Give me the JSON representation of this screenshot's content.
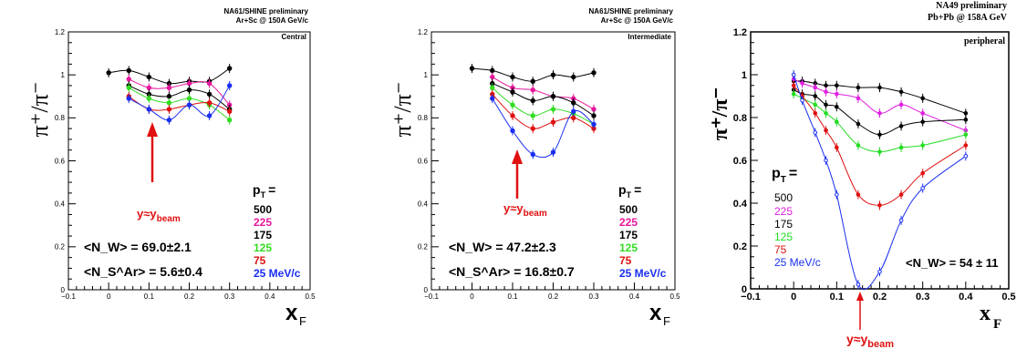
{
  "panels": [
    {
      "header_lines": [
        "NA61/SHINE preliminary",
        "Ar+Sc @ 150A GeV/c"
      ],
      "corner_label": "Central",
      "ylabel": "π⁺/π⁻",
      "xlabel_main": "x",
      "xlabel_sub": "F",
      "pt_label_main": "p",
      "pt_label_sub": "T",
      "pt_label_eq": "=",
      "legend": [
        "500",
        "225",
        "175",
        "125",
        "75",
        "25 MeV/c"
      ],
      "nw_text": "<N_W> = 69.0±2.1",
      "ns_text": "<N_S^Ar> = 5.6±0.4",
      "arrow_label_main": "y≈y",
      "arrow_label_sub": "beam"
    },
    {
      "header_lines": [
        "NA61/SHINE preliminary",
        "Ar+Sc @ 150A GeV/c"
      ],
      "corner_label": "Intermediate",
      "ylabel": "π⁺/π⁻",
      "xlabel_main": "x",
      "xlabel_sub": "F",
      "pt_label_main": "p",
      "pt_label_sub": "T",
      "pt_label_eq": "=",
      "legend": [
        "500",
        "225",
        "175",
        "125",
        "75",
        "25 MeV/c"
      ],
      "nw_text": "<N_W> = 47.2±2.3",
      "ns_text": "<N_S^Ar> = 16.8±0.7",
      "arrow_label_main": "y≈y",
      "arrow_label_sub": "beam"
    },
    {
      "header_lines": [
        "NA49 preliminary",
        "Pb+Pb @ 158A GeV"
      ],
      "corner_label": "peripheral",
      "ylabel": "π⁺/π⁻",
      "xlabel_main": "x",
      "xlabel_sub": "F",
      "pt_label_main": "p",
      "pt_label_sub": "T",
      "pt_label_eq": "=",
      "legend": [
        "500",
        "225",
        "175",
        "125",
        "75",
        "25  MeV/c"
      ],
      "nw_text": "<N_W> = 54 ± 11",
      "ns_text": "",
      "arrow_label_main": "y≈y",
      "arrow_label_sub": "beam"
    }
  ],
  "chart_data": [
    {
      "type": "line",
      "xlim": [
        -0.1,
        0.5
      ],
      "ylim": [
        0,
        1.2
      ],
      "xticks": [
        "−0.1",
        "0",
        "0.1",
        "0.2",
        "0.3",
        "0.4",
        "0.5"
      ],
      "yticks": [
        "0",
        "0.2",
        "0.4",
        "0.6",
        "0.8",
        "1",
        "1.2"
      ],
      "colors": [
        "#000000",
        "#e6189d",
        "#000000",
        "#33dd22",
        "#e01010",
        "#1a2ff0"
      ],
      "series": [
        {
          "name": "500",
          "x": [
            0,
            0.05,
            0.1,
            0.15,
            0.2,
            0.25,
            0.3
          ],
          "y": [
            1.01,
            1.02,
            0.99,
            0.96,
            0.97,
            0.97,
            1.03
          ]
        },
        {
          "name": "225",
          "x": [
            0.05,
            0.1,
            0.15,
            0.2,
            0.25,
            0.3
          ],
          "y": [
            0.98,
            0.94,
            0.94,
            0.96,
            0.96,
            0.86
          ]
        },
        {
          "name": "175",
          "x": [
            0.05,
            0.1,
            0.15,
            0.2,
            0.25,
            0.3
          ],
          "y": [
            0.95,
            0.91,
            0.9,
            0.93,
            0.91,
            0.84
          ]
        },
        {
          "name": "125",
          "x": [
            0.05,
            0.1,
            0.15,
            0.2,
            0.25,
            0.3
          ],
          "y": [
            0.94,
            0.89,
            0.87,
            0.89,
            0.86,
            0.79
          ]
        },
        {
          "name": "75",
          "x": [
            0.05,
            0.1,
            0.15,
            0.2,
            0.25,
            0.3
          ],
          "y": [
            0.9,
            0.84,
            0.84,
            0.86,
            0.87,
            0.83
          ]
        },
        {
          "name": "25 MeV/c",
          "x": [
            0.05,
            0.1,
            0.15,
            0.2,
            0.25,
            0.3
          ],
          "y": [
            0.89,
            0.84,
            0.79,
            0.86,
            0.81,
            0.95
          ]
        }
      ]
    },
    {
      "type": "line",
      "xlim": [
        -0.1,
        0.5
      ],
      "ylim": [
        0,
        1.2
      ],
      "xticks": [
        "−0.1",
        "0",
        "0.1",
        "0.2",
        "0.3",
        "0.4",
        "0.5"
      ],
      "yticks": [
        "0",
        "0.2",
        "0.4",
        "0.6",
        "0.8",
        "1",
        "1.2"
      ],
      "colors": [
        "#000000",
        "#e6189d",
        "#000000",
        "#33dd22",
        "#e01010",
        "#1a2ff0"
      ],
      "series": [
        {
          "name": "500",
          "x": [
            0,
            0.05,
            0.1,
            0.15,
            0.2,
            0.25,
            0.3
          ],
          "y": [
            1.03,
            1.02,
            0.99,
            0.97,
            1.0,
            0.99,
            1.01
          ]
        },
        {
          "name": "225",
          "x": [
            0.05,
            0.1,
            0.15,
            0.2,
            0.25,
            0.3
          ],
          "y": [
            0.99,
            0.94,
            0.93,
            0.9,
            0.89,
            0.84
          ]
        },
        {
          "name": "175",
          "x": [
            0.05,
            0.1,
            0.15,
            0.2,
            0.25,
            0.3
          ],
          "y": [
            0.96,
            0.92,
            0.88,
            0.9,
            0.87,
            0.81
          ]
        },
        {
          "name": "125",
          "x": [
            0.05,
            0.1,
            0.15,
            0.2,
            0.25,
            0.3
          ],
          "y": [
            0.94,
            0.86,
            0.81,
            0.84,
            0.82,
            0.77
          ]
        },
        {
          "name": "75",
          "x": [
            0.05,
            0.1,
            0.15,
            0.2,
            0.25,
            0.3
          ],
          "y": [
            0.91,
            0.81,
            0.75,
            0.78,
            0.8,
            0.75
          ]
        },
        {
          "name": "25 MeV/c",
          "x": [
            0.05,
            0.1,
            0.15,
            0.2,
            0.25,
            0.3
          ],
          "y": [
            0.89,
            0.74,
            0.63,
            0.64,
            0.83,
            0.77
          ]
        }
      ]
    },
    {
      "type": "line",
      "xlim": [
        -0.1,
        0.5
      ],
      "ylim": [
        0,
        1.2
      ],
      "xticks": [
        "−0.1",
        "0",
        "0.1",
        "0.2",
        "0.3",
        "0.4",
        "0.5"
      ],
      "yticks": [
        "0",
        "0.2",
        "0.4",
        "0.6",
        "0.8",
        "1",
        "1.2"
      ],
      "colors": [
        "#000000",
        "#e020e0",
        "#000000",
        "#22dd22",
        "#e01010",
        "#1a2ff0"
      ],
      "series": [
        {
          "name": "500",
          "x": [
            0,
            0.02,
            0.05,
            0.075,
            0.1,
            0.15,
            0.2,
            0.25,
            0.3,
            0.4
          ],
          "y": [
            0.97,
            0.97,
            0.96,
            0.95,
            0.95,
            0.94,
            0.94,
            0.92,
            0.89,
            0.82
          ]
        },
        {
          "name": "225",
          "x": [
            0,
            0.02,
            0.05,
            0.075,
            0.1,
            0.15,
            0.2,
            0.25,
            0.3,
            0.4
          ],
          "y": [
            0.98,
            0.96,
            0.94,
            0.92,
            0.91,
            0.89,
            0.82,
            0.86,
            0.82,
            0.74
          ]
        },
        {
          "name": "175",
          "x": [
            0,
            0.02,
            0.05,
            0.075,
            0.1,
            0.15,
            0.2,
            0.25,
            0.3,
            0.4
          ],
          "y": [
            0.93,
            0.91,
            0.9,
            0.86,
            0.85,
            0.77,
            0.72,
            0.76,
            0.78,
            0.79
          ]
        },
        {
          "name": "125",
          "x": [
            0,
            0.02,
            0.05,
            0.075,
            0.1,
            0.15,
            0.2,
            0.25,
            0.3,
            0.4
          ],
          "y": [
            0.91,
            0.89,
            0.86,
            0.82,
            0.78,
            0.67,
            0.64,
            0.66,
            0.67,
            0.72
          ]
        },
        {
          "name": "75",
          "x": [
            0,
            0.02,
            0.05,
            0.075,
            0.1,
            0.15,
            0.2,
            0.25,
            0.3,
            0.4
          ],
          "y": [
            0.95,
            0.9,
            0.82,
            0.74,
            0.66,
            0.44,
            0.39,
            0.44,
            0.54,
            0.67
          ]
        },
        {
          "name": "25  MeV/c",
          "x": [
            0,
            0.02,
            0.05,
            0.075,
            0.1,
            0.15,
            0.2,
            0.25,
            0.3,
            0.4
          ],
          "y": [
            1.0,
            0.88,
            0.73,
            0.6,
            0.44,
            0.02,
            0.08,
            0.32,
            0.47,
            0.62
          ]
        }
      ]
    }
  ]
}
